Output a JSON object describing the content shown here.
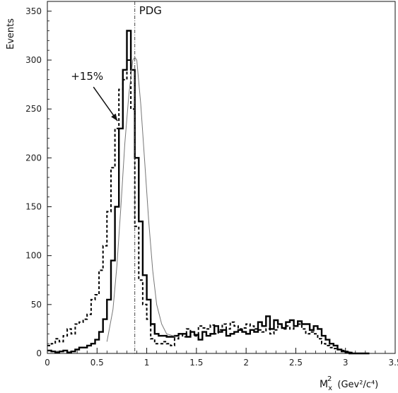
{
  "chart_data": {
    "type": "line",
    "ylabel": "Events",
    "xlabel": {
      "base": "M",
      "sub": "x",
      "sup": "2",
      "unit": "(Gev²/c⁴)"
    },
    "xlim": [
      0,
      3.5
    ],
    "ylim": [
      0,
      360
    ],
    "xticks": [
      0,
      0.5,
      1,
      1.5,
      2,
      2.5,
      3,
      3.5
    ],
    "xtick_labels": [
      "0",
      "0.5",
      "1",
      "1.5",
      "2",
      "2.5",
      "3",
      "3.5"
    ],
    "yticks": [
      0,
      50,
      100,
      150,
      200,
      250,
      300,
      350
    ],
    "ytick_labels": [
      "0",
      "50",
      "100",
      "150",
      "200",
      "250",
      "300",
      "350"
    ],
    "annotations": [
      {
        "text": "PDG",
        "x": 0.88
      },
      {
        "text": "+15%",
        "arrow_to": [
          0.72,
          245
        ]
      }
    ],
    "series": [
      {
        "style": "solid-step",
        "x": [
          0.0,
          0.04,
          0.08,
          0.12,
          0.16,
          0.2,
          0.24,
          0.28,
          0.32,
          0.36,
          0.4,
          0.44,
          0.48,
          0.52,
          0.56,
          0.6,
          0.64,
          0.68,
          0.72,
          0.76,
          0.8,
          0.84,
          0.88,
          0.92,
          0.96,
          1.0,
          1.04,
          1.08,
          1.12,
          1.16,
          1.2,
          1.24,
          1.28,
          1.32,
          1.36,
          1.4,
          1.44,
          1.48,
          1.52,
          1.56,
          1.6,
          1.64,
          1.68,
          1.72,
          1.76,
          1.8,
          1.84,
          1.88,
          1.92,
          1.96,
          2.0,
          2.04,
          2.08,
          2.12,
          2.16,
          2.2,
          2.24,
          2.28,
          2.32,
          2.36,
          2.4,
          2.44,
          2.48,
          2.52,
          2.56,
          2.6,
          2.64,
          2.68,
          2.72,
          2.76,
          2.8,
          2.84,
          2.88,
          2.92,
          2.96,
          3.0,
          3.04,
          3.08,
          3.12,
          3.16,
          3.2
        ],
        "values": [
          3,
          2,
          1,
          2,
          3,
          1,
          2,
          4,
          6,
          6,
          8,
          10,
          14,
          22,
          35,
          55,
          95,
          150,
          230,
          290,
          330,
          290,
          200,
          135,
          80,
          55,
          30,
          20,
          18,
          18,
          17,
          17,
          18,
          20,
          20,
          17,
          22,
          19,
          14,
          22,
          18,
          20,
          28,
          22,
          24,
          18,
          20,
          22,
          24,
          22,
          20,
          24,
          22,
          32,
          28,
          38,
          25,
          34,
          30,
          26,
          32,
          34,
          28,
          33,
          30,
          30,
          24,
          28,
          25,
          18,
          14,
          10,
          8,
          4,
          2,
          1,
          0,
          0,
          0,
          0,
          0
        ]
      },
      {
        "style": "dashed-step",
        "x": [
          0.0,
          0.04,
          0.08,
          0.12,
          0.16,
          0.2,
          0.24,
          0.28,
          0.32,
          0.36,
          0.4,
          0.44,
          0.48,
          0.52,
          0.56,
          0.6,
          0.64,
          0.68,
          0.72,
          0.76,
          0.8,
          0.84,
          0.88,
          0.92,
          0.96,
          1.0,
          1.04,
          1.08,
          1.12,
          1.16,
          1.2,
          1.24,
          1.28,
          1.32,
          1.36,
          1.4,
          1.44,
          1.48,
          1.52,
          1.56,
          1.6,
          1.64,
          1.68,
          1.72,
          1.76,
          1.8,
          1.84,
          1.88,
          1.92,
          1.96,
          2.0,
          2.04,
          2.08,
          2.12,
          2.16,
          2.2,
          2.24,
          2.28,
          2.32,
          2.36,
          2.4,
          2.44,
          2.48,
          2.52,
          2.56,
          2.6,
          2.64,
          2.68,
          2.72,
          2.76,
          2.8,
          2.84,
          2.88,
          2.92,
          2.96,
          3.0,
          3.04,
          3.08,
          3.12,
          3.16,
          3.2
        ],
        "values": [
          8,
          10,
          15,
          12,
          18,
          25,
          20,
          30,
          32,
          35,
          40,
          55,
          60,
          85,
          110,
          145,
          190,
          230,
          270,
          280,
          300,
          250,
          130,
          75,
          50,
          35,
          15,
          10,
          10,
          12,
          10,
          8,
          15,
          20,
          17,
          25,
          22,
          18,
          28,
          26,
          25,
          29,
          20,
          24,
          30,
          25,
          32,
          28,
          25,
          26,
          30,
          28,
          25,
          24,
          22,
          25,
          20,
          24,
          30,
          25,
          28,
          25,
          28,
          30,
          25,
          20,
          22,
          20,
          15,
          10,
          8,
          6,
          5,
          4,
          3,
          2,
          1,
          0,
          0,
          0,
          0
        ]
      },
      {
        "style": "thin-fit",
        "x": [
          0.6,
          0.66,
          0.7,
          0.74,
          0.78,
          0.82,
          0.86,
          0.88,
          0.9,
          0.94,
          0.98,
          1.02,
          1.06,
          1.1,
          1.15,
          1.2,
          1.3
        ],
        "values": [
          12,
          45,
          90,
          150,
          215,
          265,
          300,
          303,
          300,
          255,
          195,
          135,
          85,
          50,
          30,
          20,
          17
        ]
      }
    ]
  }
}
